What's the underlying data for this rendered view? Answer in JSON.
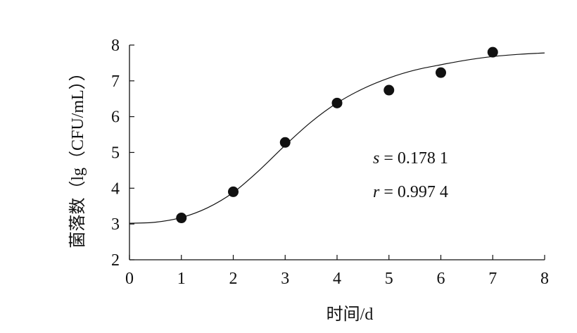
{
  "chart_data": {
    "type": "scatter",
    "xlabel": "时间/d",
    "ylabel": "菌落数（lg（CFU/mL））",
    "xlim": [
      0,
      8
    ],
    "ylim": [
      2,
      8
    ],
    "x_ticks": [
      "0",
      "1",
      "2",
      "3",
      "4",
      "5",
      "6",
      "7",
      "8"
    ],
    "y_ticks": [
      "2",
      "3",
      "4",
      "5",
      "6",
      "7",
      "8"
    ],
    "grid": false,
    "series": [
      {
        "kind": "points",
        "x": [
          1,
          2,
          3,
          4,
          5,
          6,
          7
        ],
        "y": [
          3.17,
          3.9,
          5.28,
          6.38,
          6.74,
          7.23,
          7.8
        ]
      },
      {
        "kind": "fitted-curve",
        "x": [
          0,
          0.5,
          1,
          1.5,
          2,
          2.5,
          3,
          3.5,
          4,
          4.5,
          5,
          5.5,
          6,
          6.5,
          7,
          7.5,
          8
        ],
        "y": [
          3.02,
          3.05,
          3.18,
          3.45,
          3.88,
          4.5,
          5.2,
          5.85,
          6.38,
          6.78,
          7.08,
          7.3,
          7.45,
          7.58,
          7.68,
          7.74,
          7.78
        ]
      }
    ],
    "annotations": [
      {
        "var": "s",
        "text": " = 0.178 1"
      },
      {
        "var": "r",
        "text": " = 0.997 4"
      }
    ]
  }
}
